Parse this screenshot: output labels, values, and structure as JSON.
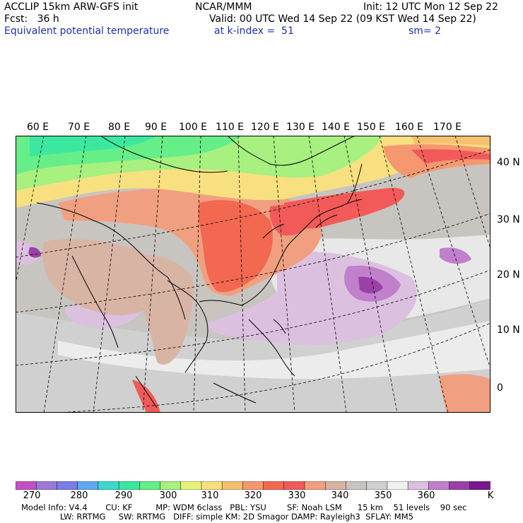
{
  "header": {
    "line1_left": "ACCLIP 15km ARW-GFS init",
    "line1_mid": "NCAR/MMM",
    "line1_right": "Init: 12 UTC Mon 12 Sep 22",
    "line2_left": "Fcst:   36 h",
    "line2_right": "Valid: 00 UTC Wed 14 Sep 22 (09 KST Wed 14 Sep 22)",
    "line3_left": "Equivalent potential temperature",
    "line3_mid": "at k-index =  51",
    "line3_right": "sm= 2"
  },
  "map": {
    "lon_labels": [
      "60 E",
      "70 E",
      "80 E",
      "90 E",
      "100 E",
      "110 E",
      "120 E",
      "130 E",
      "140 E",
      "150 E",
      "160 E",
      "170 E"
    ],
    "lat_labels": [
      "40 N",
      "30 N",
      "20 N",
      "10 N",
      "0"
    ],
    "field": "Equivalent potential temperature"
  },
  "colorbar": {
    "tick_labels": [
      "270",
      "280",
      "290",
      "300",
      "310",
      "320",
      "330",
      "340",
      "350",
      "360"
    ],
    "unit": "K",
    "colors": [
      "#c44fc4",
      "#9a7ad6",
      "#7d7de8",
      "#5fa8f0",
      "#3cd8d0",
      "#3ce8a0",
      "#66ee88",
      "#a8f080",
      "#e8f27a",
      "#f8e080",
      "#f7c070",
      "#f59870",
      "#f26850",
      "#f25a5a",
      "#f0a080",
      "#d8b4a4",
      "#c8c4c0",
      "#d0d0d0",
      "#f0f0f0",
      "#dcc0e0",
      "#c080cc",
      "#9a40a8",
      "#7a1890"
    ]
  },
  "footer": {
    "line1": "Model Info: V4.4       CU: KF         MP: WDM 6class   PBL: YSU        SF: Noah LSM      15 km    51 levels    90 sec",
    "line2": "               LW: RRTMG     SW: RRTMG   DIFF: simple KM: 2D Smagor DAMP: Rayleigh3  SFLAY: MM5"
  }
}
